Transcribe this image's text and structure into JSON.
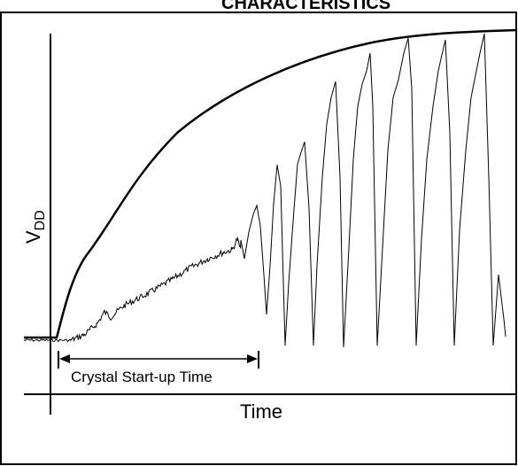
{
  "figure": {
    "header_text": "CHARACTERISTICS",
    "y_axis_label": {
      "main": "V",
      "subscript": "DD"
    },
    "x_axis_label": "Time",
    "interval_label": "Crystal Start-up Time"
  },
  "colors": {
    "line": "#000000",
    "background": "#ffffff",
    "border": "#000000"
  }
}
